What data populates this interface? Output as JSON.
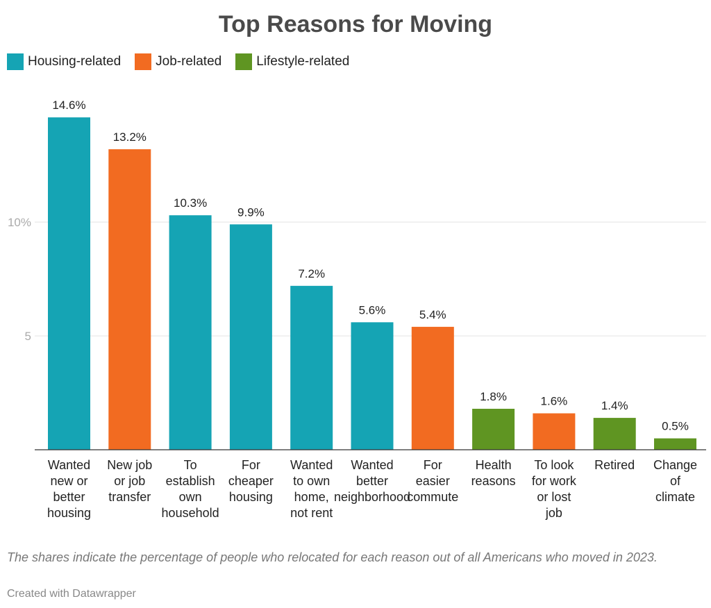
{
  "chart_data": {
    "type": "bar",
    "title": "Top Reasons for Moving",
    "categories": [
      [
        "Wanted",
        "new or",
        "better",
        "housing"
      ],
      [
        "New job",
        "or job",
        "transfer"
      ],
      [
        "To",
        "establish",
        "own",
        "household"
      ],
      [
        "For",
        "cheaper",
        "housing"
      ],
      [
        "Wanted",
        "to own",
        "home,",
        "not rent"
      ],
      [
        "Wanted",
        "better",
        "neighborhood"
      ],
      [
        "For",
        "easier",
        "commute"
      ],
      [
        "Health",
        "reasons"
      ],
      [
        "To look",
        "for work",
        "or lost",
        "job"
      ],
      [
        "Retired"
      ],
      [
        "Change",
        "of",
        "climate"
      ]
    ],
    "values": [
      14.6,
      13.2,
      10.3,
      9.9,
      7.2,
      5.6,
      5.4,
      1.8,
      1.6,
      1.4,
      0.5
    ],
    "data_labels": [
      "14.6%",
      "13.2%",
      "10.3%",
      "9.9%",
      "7.2%",
      "5.6%",
      "5.4%",
      "1.8%",
      "1.6%",
      "1.4%",
      "0.5%"
    ],
    "groups": [
      "Housing-related",
      "Job-related",
      "Housing-related",
      "Housing-related",
      "Housing-related",
      "Housing-related",
      "Job-related",
      "Lifestyle-related",
      "Job-related",
      "Lifestyle-related",
      "Lifestyle-related"
    ],
    "legend": [
      {
        "name": "Housing-related",
        "color": "#15a4b4"
      },
      {
        "name": "Job-related",
        "color": "#f26b21"
      },
      {
        "name": "Lifestyle-related",
        "color": "#5f9522"
      }
    ],
    "legend_position": "top-left",
    "yticks": [
      {
        "value": 5,
        "label": "5"
      },
      {
        "value": 10,
        "label": "10%"
      }
    ],
    "ylim": [
      0,
      16
    ],
    "grid": true,
    "xlabel": "",
    "ylabel": ""
  },
  "note": "The shares indicate the percentage of people who relocated for each reason out of all Americans who moved in 2023.",
  "credit": "Created with Datawrapper"
}
